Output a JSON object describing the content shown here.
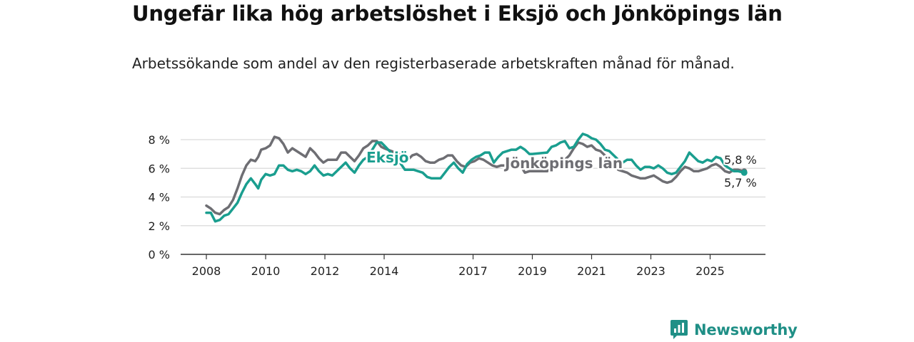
{
  "title": "Ungefär lika hög arbetslöshet i Eksjö och Jönköpings län",
  "subtitle": "Arbetssökande som andel av den registerbaserade arbetskraften månad för månad.",
  "brand": {
    "name": "Newsworthy",
    "icon": "bar-chart-icon"
  },
  "colors": {
    "eksjo": "#1a9e8f",
    "lan": "#6e6e73",
    "grid": "#d9d9d9",
    "axis": "#333333"
  },
  "chart_data": {
    "type": "line",
    "title": "Ungefär lika hög arbetslöshet i Eksjö och Jönköpings län",
    "xlabel": "",
    "ylabel": "",
    "xlim": [
      2008,
      2026.6
    ],
    "ylim": [
      0,
      8
    ],
    "x_ticks": [
      2008,
      2010,
      2012,
      2014,
      2017,
      2019,
      2021,
      2023,
      2025
    ],
    "x_tick_labels": [
      "2008",
      "2010",
      "2012",
      "2014",
      "2017",
      "2019",
      "2021",
      "2023",
      "2025"
    ],
    "y_ticks": [
      0,
      2,
      4,
      6,
      8
    ],
    "y_tick_labels": [
      "0 %",
      "2 %",
      "4 %",
      "6 %",
      "8 %"
    ],
    "series": [
      {
        "name": "Eksjö",
        "label": "Eksjö",
        "end_label": "5,7 %",
        "points": [
          [
            2008.0,
            2.9
          ],
          [
            2008.15,
            2.9
          ],
          [
            2008.3,
            2.3
          ],
          [
            2008.45,
            2.4
          ],
          [
            2008.6,
            2.7
          ],
          [
            2008.75,
            2.8
          ],
          [
            2008.9,
            3.2
          ],
          [
            2009.05,
            3.6
          ],
          [
            2009.2,
            4.3
          ],
          [
            2009.35,
            4.9
          ],
          [
            2009.5,
            5.3
          ],
          [
            2009.65,
            4.9
          ],
          [
            2009.75,
            4.6
          ],
          [
            2009.85,
            5.2
          ],
          [
            2010.0,
            5.6
          ],
          [
            2010.15,
            5.5
          ],
          [
            2010.3,
            5.6
          ],
          [
            2010.45,
            6.2
          ],
          [
            2010.6,
            6.2
          ],
          [
            2010.75,
            5.9
          ],
          [
            2010.9,
            5.8
          ],
          [
            2011.05,
            5.9
          ],
          [
            2011.2,
            5.8
          ],
          [
            2011.35,
            5.6
          ],
          [
            2011.5,
            5.8
          ],
          [
            2011.65,
            6.2
          ],
          [
            2011.8,
            5.8
          ],
          [
            2011.95,
            5.5
          ],
          [
            2012.1,
            5.6
          ],
          [
            2012.25,
            5.5
          ],
          [
            2012.4,
            5.8
          ],
          [
            2012.55,
            6.1
          ],
          [
            2012.7,
            6.4
          ],
          [
            2012.85,
            6.0
          ],
          [
            2013.0,
            5.7
          ],
          [
            2013.15,
            6.2
          ],
          [
            2013.3,
            6.6
          ],
          [
            2013.45,
            6.8
          ],
          [
            2013.6,
            7.3
          ],
          [
            2013.75,
            7.8
          ],
          [
            2013.9,
            7.8
          ],
          [
            2014.0,
            7.6
          ],
          [
            2014.5,
            6.5
          ],
          [
            2014.7,
            5.9
          ],
          [
            2014.85,
            5.9
          ],
          [
            2015.0,
            5.9
          ],
          [
            2015.15,
            5.8
          ],
          [
            2015.3,
            5.7
          ],
          [
            2015.45,
            5.4
          ],
          [
            2015.6,
            5.3
          ],
          [
            2015.75,
            5.3
          ],
          [
            2015.9,
            5.3
          ],
          [
            2016.05,
            5.7
          ],
          [
            2016.2,
            6.1
          ],
          [
            2016.35,
            6.4
          ],
          [
            2016.5,
            6.0
          ],
          [
            2016.65,
            5.7
          ],
          [
            2016.8,
            6.3
          ],
          [
            2016.95,
            6.6
          ],
          [
            2017.1,
            6.8
          ],
          [
            2017.25,
            6.9
          ],
          [
            2017.4,
            7.1
          ],
          [
            2017.55,
            7.1
          ],
          [
            2017.7,
            6.4
          ],
          [
            2017.85,
            6.8
          ],
          [
            2018.0,
            7.1
          ],
          [
            2018.15,
            7.2
          ],
          [
            2018.3,
            7.3
          ],
          [
            2018.45,
            7.3
          ],
          [
            2018.6,
            7.5
          ],
          [
            2018.75,
            7.3
          ],
          [
            2018.9,
            7.0
          ],
          [
            2019.0,
            7.0
          ],
          [
            2019.5,
            7.1
          ],
          [
            2019.65,
            7.5
          ],
          [
            2019.8,
            7.6
          ],
          [
            2019.95,
            7.8
          ],
          [
            2020.1,
            7.9
          ],
          [
            2020.25,
            7.4
          ],
          [
            2020.4,
            7.5
          ],
          [
            2020.55,
            8.0
          ],
          [
            2020.7,
            8.4
          ],
          [
            2020.85,
            8.3
          ],
          [
            2021.0,
            8.1
          ],
          [
            2021.15,
            8.0
          ],
          [
            2021.3,
            7.7
          ],
          [
            2021.45,
            7.3
          ],
          [
            2021.6,
            7.2
          ],
          [
            2021.75,
            6.9
          ],
          [
            2021.9,
            6.6
          ],
          [
            2022.05,
            6.4
          ],
          [
            2022.2,
            6.6
          ],
          [
            2022.35,
            6.6
          ],
          [
            2022.5,
            6.2
          ],
          [
            2022.65,
            5.9
          ],
          [
            2022.8,
            6.1
          ],
          [
            2022.95,
            6.1
          ],
          [
            2023.1,
            6.0
          ],
          [
            2023.25,
            6.2
          ],
          [
            2023.4,
            6.0
          ],
          [
            2023.55,
            5.7
          ],
          [
            2023.7,
            5.6
          ],
          [
            2023.85,
            5.7
          ],
          [
            2024.0,
            6.1
          ],
          [
            2024.15,
            6.5
          ],
          [
            2024.3,
            7.1
          ],
          [
            2024.45,
            6.8
          ],
          [
            2024.6,
            6.5
          ],
          [
            2024.75,
            6.4
          ],
          [
            2024.9,
            6.6
          ],
          [
            2025.05,
            6.5
          ],
          [
            2025.2,
            6.8
          ],
          [
            2025.35,
            6.7
          ],
          [
            2025.5,
            6.2
          ],
          [
            2025.65,
            6.0
          ],
          [
            2025.8,
            5.8
          ],
          [
            2025.95,
            5.8
          ],
          [
            2026.15,
            5.7
          ]
        ]
      },
      {
        "name": "Jönköpings län",
        "label": "Jönköpings län",
        "end_label": "5,8 %",
        "points": [
          [
            2008.0,
            3.4
          ],
          [
            2008.15,
            3.2
          ],
          [
            2008.3,
            2.9
          ],
          [
            2008.45,
            2.8
          ],
          [
            2008.6,
            3.1
          ],
          [
            2008.75,
            3.3
          ],
          [
            2008.9,
            3.8
          ],
          [
            2009.05,
            4.6
          ],
          [
            2009.2,
            5.5
          ],
          [
            2009.35,
            6.2
          ],
          [
            2009.5,
            6.6
          ],
          [
            2009.65,
            6.5
          ],
          [
            2009.75,
            6.8
          ],
          [
            2009.85,
            7.3
          ],
          [
            2010.0,
            7.4
          ],
          [
            2010.15,
            7.6
          ],
          [
            2010.3,
            8.2
          ],
          [
            2010.45,
            8.1
          ],
          [
            2010.6,
            7.7
          ],
          [
            2010.75,
            7.1
          ],
          [
            2010.9,
            7.4
          ],
          [
            2011.05,
            7.2
          ],
          [
            2011.2,
            7.0
          ],
          [
            2011.35,
            6.8
          ],
          [
            2011.5,
            7.4
          ],
          [
            2011.65,
            7.1
          ],
          [
            2011.8,
            6.7
          ],
          [
            2011.95,
            6.4
          ],
          [
            2012.1,
            6.6
          ],
          [
            2012.25,
            6.6
          ],
          [
            2012.4,
            6.6
          ],
          [
            2012.55,
            7.1
          ],
          [
            2012.7,
            7.1
          ],
          [
            2012.85,
            6.8
          ],
          [
            2013.0,
            6.5
          ],
          [
            2013.15,
            6.9
          ],
          [
            2013.3,
            7.4
          ],
          [
            2013.45,
            7.6
          ],
          [
            2013.6,
            7.9
          ],
          [
            2013.75,
            7.9
          ],
          [
            2013.9,
            7.5
          ],
          [
            2014.0,
            7.4
          ],
          [
            2014.5,
            7.0
          ],
          [
            2014.65,
            6.6
          ],
          [
            2014.8,
            6.6
          ],
          [
            2014.95,
            6.9
          ],
          [
            2015.1,
            7.0
          ],
          [
            2015.25,
            6.8
          ],
          [
            2015.4,
            6.5
          ],
          [
            2015.55,
            6.4
          ],
          [
            2015.7,
            6.4
          ],
          [
            2015.85,
            6.6
          ],
          [
            2016.0,
            6.7
          ],
          [
            2016.15,
            6.9
          ],
          [
            2016.3,
            6.9
          ],
          [
            2016.45,
            6.5
          ],
          [
            2016.6,
            6.2
          ],
          [
            2016.75,
            6.1
          ],
          [
            2016.9,
            6.4
          ],
          [
            2017.05,
            6.5
          ],
          [
            2017.2,
            6.7
          ],
          [
            2017.35,
            6.6
          ],
          [
            2017.5,
            6.4
          ],
          [
            2017.65,
            6.2
          ],
          [
            2017.8,
            6.1
          ],
          [
            2017.95,
            6.2
          ],
          [
            2018.0,
            6.2
          ],
          [
            2018.6,
            6.2
          ],
          [
            2018.75,
            5.7
          ],
          [
            2018.9,
            5.8
          ],
          [
            2019.0,
            5.8
          ],
          [
            2019.5,
            5.8
          ],
          [
            2019.65,
            6.0
          ],
          [
            2019.8,
            6.1
          ],
          [
            2019.95,
            6.3
          ],
          [
            2020.1,
            6.6
          ],
          [
            2020.25,
            6.9
          ],
          [
            2020.4,
            7.4
          ],
          [
            2020.55,
            7.8
          ],
          [
            2020.7,
            7.7
          ],
          [
            2020.85,
            7.5
          ],
          [
            2021.0,
            7.6
          ],
          [
            2021.15,
            7.3
          ],
          [
            2021.3,
            7.2
          ],
          [
            2021.45,
            6.9
          ],
          [
            2021.6,
            6.6
          ],
          [
            2021.75,
            6.2
          ],
          [
            2021.9,
            5.9
          ],
          [
            2022.05,
            5.8
          ],
          [
            2022.2,
            5.7
          ],
          [
            2022.35,
            5.5
          ],
          [
            2022.5,
            5.4
          ],
          [
            2022.65,
            5.3
          ],
          [
            2022.8,
            5.3
          ],
          [
            2022.95,
            5.4
          ],
          [
            2023.1,
            5.5
          ],
          [
            2023.25,
            5.3
          ],
          [
            2023.4,
            5.1
          ],
          [
            2023.55,
            5.0
          ],
          [
            2023.7,
            5.1
          ],
          [
            2023.85,
            5.4
          ],
          [
            2024.0,
            5.8
          ],
          [
            2024.15,
            6.1
          ],
          [
            2024.3,
            6.0
          ],
          [
            2024.45,
            5.8
          ],
          [
            2024.6,
            5.8
          ],
          [
            2024.75,
            5.9
          ],
          [
            2024.9,
            6.0
          ],
          [
            2025.05,
            6.2
          ],
          [
            2025.2,
            6.3
          ],
          [
            2025.35,
            6.1
          ],
          [
            2025.5,
            5.8
          ],
          [
            2025.65,
            5.7
          ],
          [
            2025.8,
            5.9
          ],
          [
            2025.95,
            5.9
          ],
          [
            2026.15,
            5.8
          ]
        ]
      }
    ]
  }
}
